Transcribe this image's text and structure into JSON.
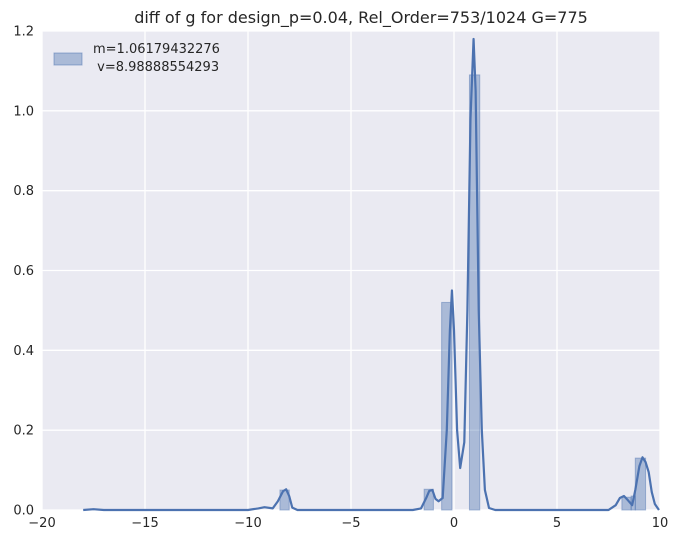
{
  "chart_data": {
    "type": "bar",
    "title": "diff of g for design_p=0.04, Rel_Order=753/1024 G=775",
    "xlabel": "",
    "ylabel": "",
    "xlim": [
      -20,
      10
    ],
    "ylim": [
      0,
      1.2
    ],
    "xticks": [
      -20,
      -15,
      -10,
      -5,
      0,
      5,
      10
    ],
    "xtick_labels": [
      "−20",
      "−15",
      "−10",
      "−5",
      "0",
      "5",
      "10"
    ],
    "yticks": [
      0.0,
      0.2,
      0.4,
      0.6,
      0.8,
      1.0,
      1.2
    ],
    "ytick_labels": [
      "0.0",
      "0.2",
      "0.4",
      "0.6",
      "0.8",
      "1.0",
      "1.2"
    ],
    "grid": true,
    "legend_position": "top-left",
    "legend": {
      "line1": "m=1.06179432276",
      "line2": " v=8.98888554293"
    },
    "colors": {
      "background": "#eaeaf2",
      "grid": "#ffffff",
      "bar": "#4c72b0",
      "line": "#4c72b0"
    },
    "histogram": [
      {
        "x0": -8.45,
        "x1": -8.0,
        "height": 0.05
      },
      {
        "x0": -1.45,
        "x1": -1.0,
        "height": 0.052
      },
      {
        "x0": -0.6,
        "x1": -0.1,
        "height": 0.52
      },
      {
        "x0": 0.75,
        "x1": 1.25,
        "height": 1.09
      },
      {
        "x0": 8.15,
        "x1": 8.6,
        "height": 0.032
      },
      {
        "x0": 8.6,
        "x1": 8.8,
        "height": 0.035
      },
      {
        "x0": 8.8,
        "x1": 9.3,
        "height": 0.13
      }
    ],
    "kde": [
      [
        -18.0,
        0.0
      ],
      [
        -17.5,
        0.002
      ],
      [
        -17.0,
        0.0
      ],
      [
        -10.0,
        0.0
      ],
      [
        -9.5,
        0.004
      ],
      [
        -9.2,
        0.007
      ],
      [
        -8.8,
        0.004
      ],
      [
        -8.55,
        0.022
      ],
      [
        -8.3,
        0.047
      ],
      [
        -8.15,
        0.052
      ],
      [
        -8.0,
        0.035
      ],
      [
        -7.85,
        0.006
      ],
      [
        -7.6,
        0.0
      ],
      [
        -2.0,
        0.0
      ],
      [
        -1.6,
        0.004
      ],
      [
        -1.35,
        0.03
      ],
      [
        -1.2,
        0.048
      ],
      [
        -1.05,
        0.05
      ],
      [
        -0.9,
        0.028
      ],
      [
        -0.75,
        0.022
      ],
      [
        -0.55,
        0.03
      ],
      [
        -0.35,
        0.2
      ],
      [
        -0.2,
        0.45
      ],
      [
        -0.1,
        0.55
      ],
      [
        0.0,
        0.45
      ],
      [
        0.15,
        0.2
      ],
      [
        0.3,
        0.105
      ],
      [
        0.5,
        0.17
      ],
      [
        0.65,
        0.5
      ],
      [
        0.8,
        0.98
      ],
      [
        0.95,
        1.18
      ],
      [
        1.05,
        1.05
      ],
      [
        1.2,
        0.5
      ],
      [
        1.35,
        0.2
      ],
      [
        1.5,
        0.05
      ],
      [
        1.7,
        0.005
      ],
      [
        2.0,
        0.0
      ],
      [
        7.5,
        0.0
      ],
      [
        7.85,
        0.012
      ],
      [
        8.05,
        0.03
      ],
      [
        8.25,
        0.035
      ],
      [
        8.45,
        0.024
      ],
      [
        8.65,
        0.012
      ],
      [
        8.8,
        0.05
      ],
      [
        9.0,
        0.11
      ],
      [
        9.15,
        0.132
      ],
      [
        9.3,
        0.12
      ],
      [
        9.45,
        0.095
      ],
      [
        9.6,
        0.045
      ],
      [
        9.75,
        0.015
      ],
      [
        9.95,
        0.0
      ]
    ]
  }
}
